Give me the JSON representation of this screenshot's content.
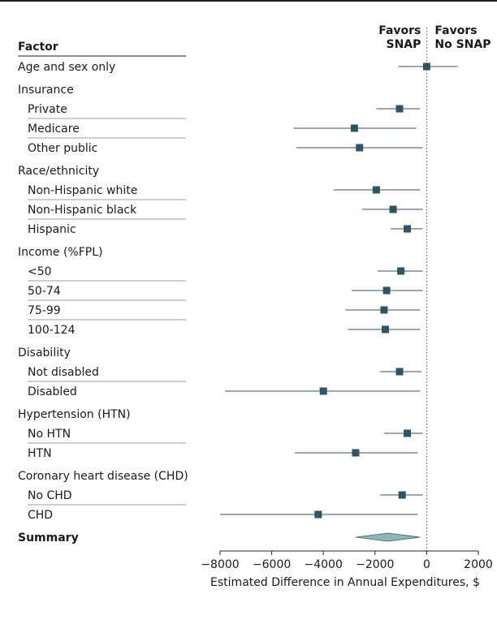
{
  "chart_data": {
    "type": "forest",
    "header": {
      "factor_label": "Factor",
      "favors_left": [
        "Favors",
        "SNAP"
      ],
      "favors_right": [
        "Favors",
        "No SNAP"
      ]
    },
    "xlabel": "Estimated Difference in Annual Expenditures, $",
    "xlim": [
      -8000,
      2000
    ],
    "xticks": [
      -8000,
      -6000,
      -4000,
      -2000,
      0,
      2000
    ],
    "xtick_labels": [
      "−8000",
      "−6000",
      "−4000",
      "−2000",
      "0",
      "2000"
    ],
    "reference_line": 0,
    "colors": {
      "marker": "#2f5563",
      "summary": "#8fb4ba",
      "line": "#2f5563"
    },
    "rows": [
      {
        "label": "Age and sex only",
        "level": 0,
        "estimate": 0,
        "lower": -1100,
        "upper": 1200
      },
      {
        "label": "Insurance",
        "level": 0,
        "header": true
      },
      {
        "label": "Private",
        "level": 1,
        "estimate": -1050,
        "lower": -1950,
        "upper": -250
      },
      {
        "label": "Medicare",
        "level": 1,
        "estimate": -2800,
        "lower": -5150,
        "upper": -400
      },
      {
        "label": "Other public",
        "level": 1,
        "estimate": -2600,
        "lower": -5050,
        "upper": -150
      },
      {
        "label": "Race/ethnicity",
        "level": 0,
        "header": true
      },
      {
        "label": "Non-Hispanic white",
        "level": 1,
        "estimate": -1950,
        "lower": -3600,
        "upper": -250
      },
      {
        "label": "Non-Hispanic black",
        "level": 1,
        "estimate": -1300,
        "lower": -2500,
        "upper": -150
      },
      {
        "label": "Hispanic",
        "level": 1,
        "estimate": -750,
        "lower": -1400,
        "upper": -150
      },
      {
        "label": "Income (%FPL)",
        "level": 0,
        "header": true
      },
      {
        "label": "<50",
        "level": 1,
        "estimate": -1000,
        "lower": -1900,
        "upper": -150
      },
      {
        "label": "50-74",
        "level": 1,
        "estimate": -1550,
        "lower": -2900,
        "upper": -150
      },
      {
        "label": "75-99",
        "level": 1,
        "estimate": -1650,
        "lower": -3150,
        "upper": -250
      },
      {
        "label": "100-124",
        "level": 1,
        "estimate": -1600,
        "lower": -3050,
        "upper": -250
      },
      {
        "label": "Disability",
        "level": 0,
        "header": true
      },
      {
        "label": "Not disabled",
        "level": 1,
        "estimate": -1050,
        "lower": -1800,
        "upper": -200
      },
      {
        "label": "Disabled",
        "level": 1,
        "estimate": -4000,
        "lower": -7800,
        "upper": -250
      },
      {
        "label": "Hypertension (HTN)",
        "level": 0,
        "header": true
      },
      {
        "label": "No HTN",
        "level": 1,
        "estimate": -750,
        "lower": -1650,
        "upper": -150
      },
      {
        "label": "HTN",
        "level": 1,
        "estimate": -2750,
        "lower": -5100,
        "upper": -350
      },
      {
        "label": "Coronary heart disease (CHD)",
        "level": 0,
        "header": true
      },
      {
        "label": "No CHD",
        "level": 1,
        "estimate": -950,
        "lower": -1800,
        "upper": -150
      },
      {
        "label": "CHD",
        "level": 1,
        "estimate": -4200,
        "lower": -8000,
        "upper": -350
      },
      {
        "label": "Summary",
        "level": 0,
        "summary": true,
        "estimate": -1500,
        "lower": -2750,
        "upper": -250
      }
    ]
  }
}
